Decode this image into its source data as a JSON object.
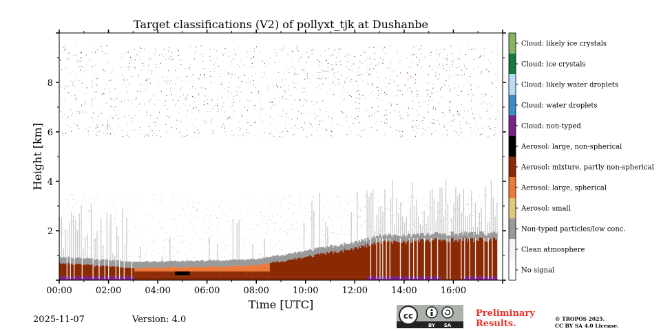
{
  "chart_data": {
    "type": "heatmap",
    "title": "Target classifications (V2) of pollyxt_tjk at Dushanbe",
    "xlabel": "Time [UTC]",
    "ylabel": "Height [km]",
    "xlim_hours": [
      0,
      18
    ],
    "ylim_km": [
      0,
      10
    ],
    "x_ticks": [
      "00:00",
      "02:00",
      "04:00",
      "06:00",
      "08:00",
      "10:00",
      "12:00",
      "14:00",
      "16:00"
    ],
    "x_tick_values": [
      0,
      2,
      4,
      6,
      8,
      10,
      12,
      14,
      16
    ],
    "y_ticks": [
      "2",
      "4",
      "6",
      "8"
    ],
    "y_tick_values": [
      2,
      4,
      6,
      8
    ],
    "data_end_hour": 17.8,
    "classes": [
      {
        "label": "Cloud: likely ice crystals",
        "color": "#86b364"
      },
      {
        "label": "Cloud: ice crystals",
        "color": "#137a3e"
      },
      {
        "label": "Cloud: likely water droplets",
        "color": "#b8dcf2"
      },
      {
        "label": "Cloud: water droplets",
        "color": "#3a8dc9"
      },
      {
        "label": "Cloud: non-typed",
        "color": "#7b2187"
      },
      {
        "label": "Aerosol: large, non-spherical",
        "color": "#000000"
      },
      {
        "label": "Aerosol: mixture, partly non-spherical",
        "color": "#8a2a04"
      },
      {
        "label": "Aerosol: large, spherical",
        "color": "#ec7a3a"
      },
      {
        "label": "Aerosol: small",
        "color": "#e2c67c"
      },
      {
        "label": "Non-typed particles/low conc.",
        "color": "#9a9a9a"
      },
      {
        "label": "Clean atmosphere",
        "color": "#f4f4f4"
      },
      {
        "label": "No signal",
        "color": "#ffffff"
      }
    ],
    "aerosol_layer_top_km": [
      {
        "time_h": 0,
        "top_km": 0.7
      },
      {
        "time_h": 3,
        "top_km": 0.5
      },
      {
        "time_h": 6,
        "top_km": 0.55
      },
      {
        "time_h": 8,
        "top_km": 0.6
      },
      {
        "time_h": 10,
        "top_km": 0.95
      },
      {
        "time_h": 12,
        "top_km": 1.3
      },
      {
        "time_h": 13,
        "top_km": 1.55
      },
      {
        "time_h": 16,
        "top_km": 1.65
      },
      {
        "time_h": 17.8,
        "top_km": 1.65
      }
    ],
    "noise_band_km": [
      5.8,
      9.5
    ]
  },
  "footer": {
    "date": "2025-11-07",
    "version": "Version: 4.0",
    "preliminary_line1": "Preliminary",
    "preliminary_line2": "Results.",
    "copyright_line1": "© TROPOS 2025.",
    "copyright_line2": "CC BY SA 4.0 License.",
    "license_badge": {
      "cc": "cc",
      "by": "BY",
      "sa": "SA"
    }
  }
}
